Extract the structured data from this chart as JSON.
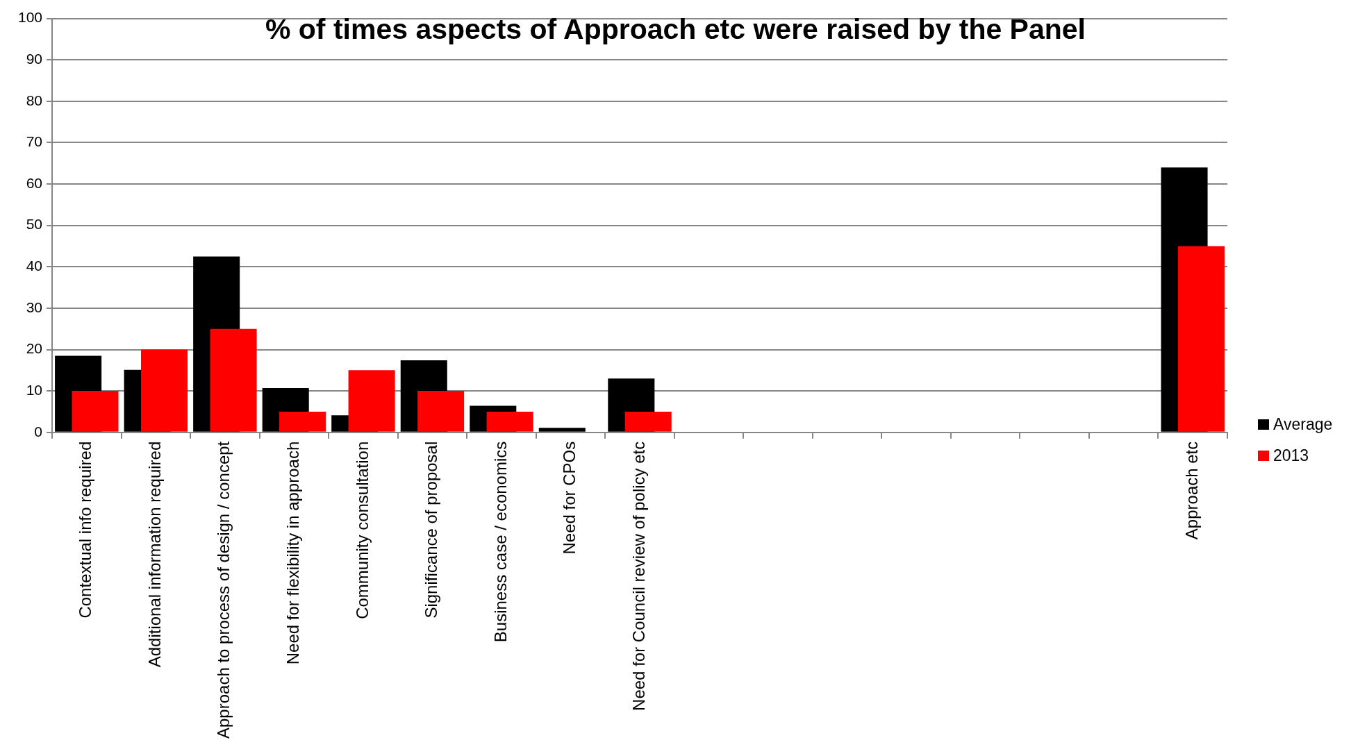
{
  "chart_data": {
    "type": "bar",
    "title": "% of times aspects of Approach etc were raised by the Panel",
    "categories": [
      "Contextual info required",
      "Additional information required",
      "Approach to process of design / concept",
      "Need for flexibility in approach",
      "Community consultation",
      "Significance of proposal",
      "Business case / economics",
      "Need for CPOs",
      "Need for Council review of policy etc",
      null,
      null,
      null,
      null,
      null,
      null,
      null,
      "Approach etc"
    ],
    "series": [
      {
        "name": "Average",
        "color": "#000000",
        "values": [
          18.5,
          15.1,
          42.5,
          10.7,
          4.1,
          17.4,
          6.4,
          1.1,
          13,
          null,
          null,
          null,
          null,
          null,
          null,
          null,
          64
        ]
      },
      {
        "name": "2013",
        "color": "#ff0000",
        "values": [
          10,
          20,
          25,
          5,
          15,
          10,
          5,
          0,
          5,
          null,
          null,
          null,
          null,
          null,
          null,
          null,
          45
        ]
      }
    ],
    "ylim": [
      0,
      100
    ],
    "yticks": [
      0,
      10,
      20,
      30,
      40,
      50,
      60,
      70,
      80,
      90,
      100
    ],
    "grid": "y",
    "legend": "right"
  }
}
